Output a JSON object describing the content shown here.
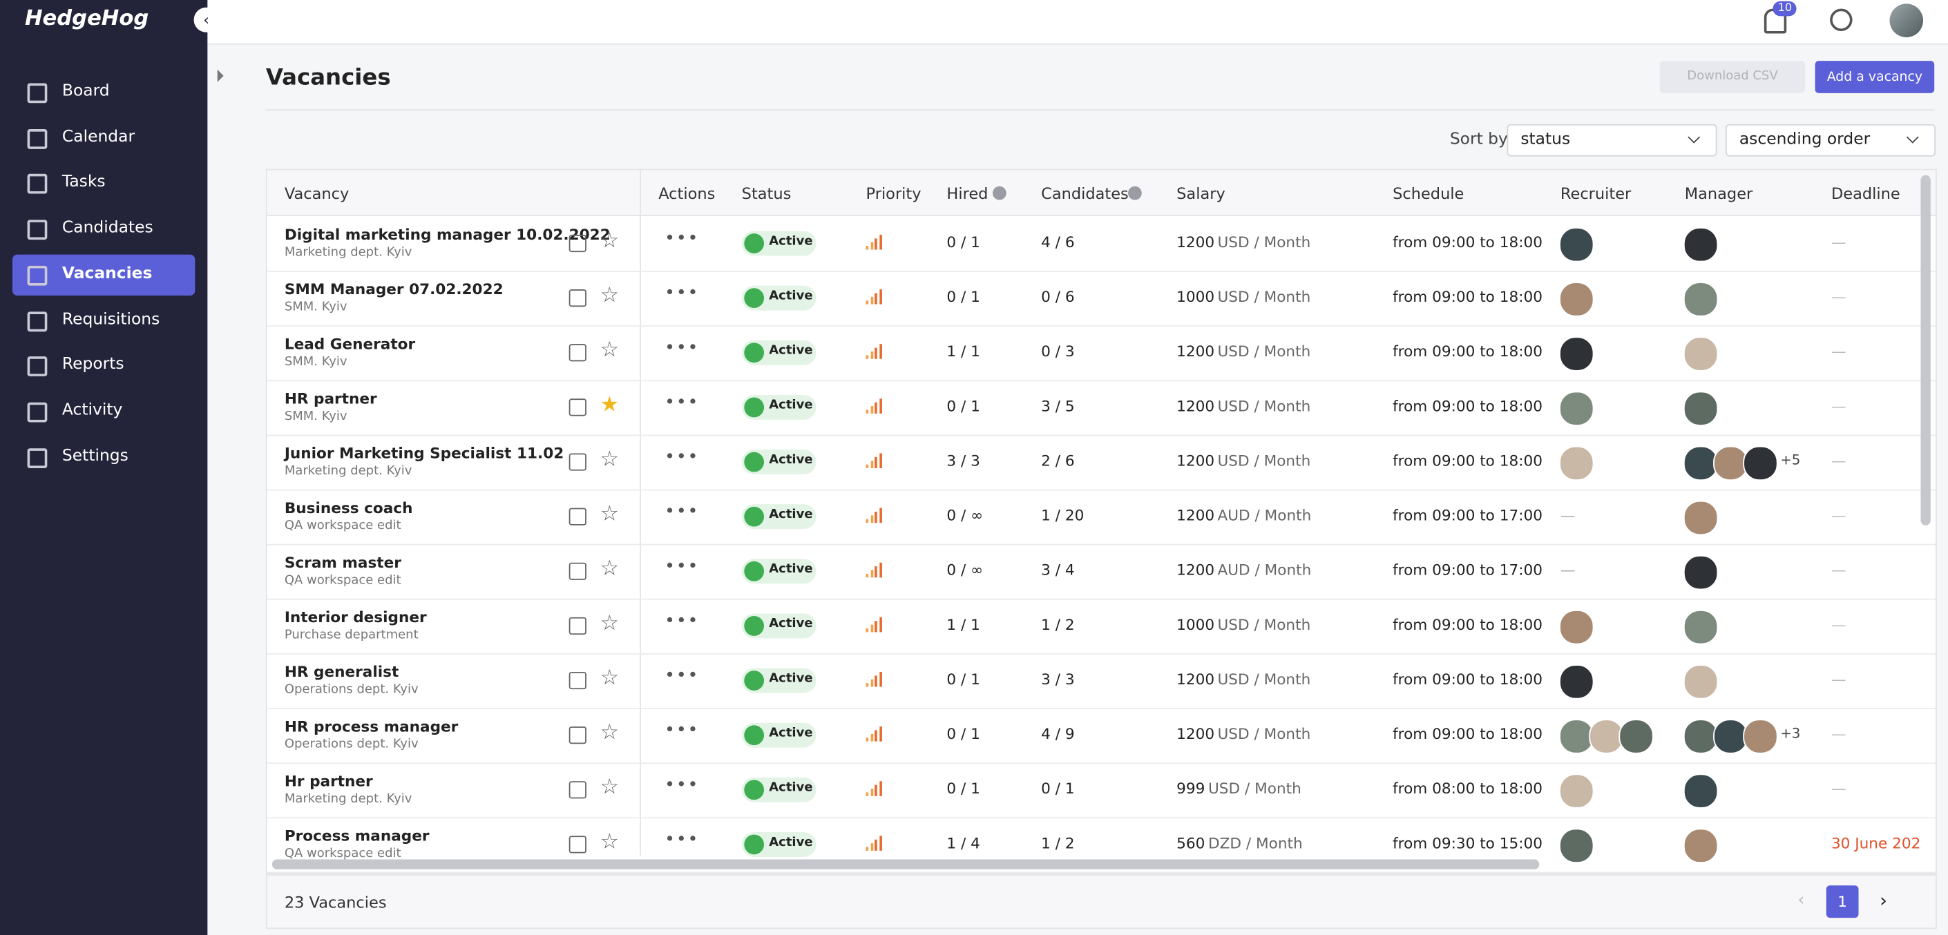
{
  "header": {
    "logo": "HedgeHog",
    "notification_count": "10"
  },
  "sidebar": {
    "items": [
      {
        "label": "Board",
        "active": false
      },
      {
        "label": "Calendar",
        "active": false
      },
      {
        "label": "Tasks",
        "active": false
      },
      {
        "label": "Candidates",
        "active": false
      },
      {
        "label": "Vacancies",
        "active": true
      },
      {
        "label": "Requisitions",
        "active": false
      },
      {
        "label": "Reports",
        "active": false
      },
      {
        "label": "Activity",
        "active": false
      },
      {
        "label": "Settings",
        "active": false
      }
    ]
  },
  "page": {
    "title": "Vacancies",
    "download_button": "Download CSV",
    "add_button": "Add a vacancy",
    "sort_label": "Sort by",
    "sort_field": "status",
    "sort_order": "ascending order"
  },
  "table": {
    "columns": [
      "Vacancy",
      "Actions",
      "Status",
      "Priority",
      "Hired",
      "Candidates",
      "Salary",
      "Schedule",
      "Recruiter",
      "Manager",
      "Deadline"
    ],
    "rows": [
      {
        "title": "Digital marketing manager 10.02.2022",
        "department": "Marketing dept. Kyiv",
        "starred": false,
        "status": "Active",
        "hired": "0 / 1",
        "candidates": "4 / 6",
        "salary": "1200",
        "salary_unit": "USD / Month",
        "schedule": "from 09:00 to 18:00",
        "deadline": "—"
      },
      {
        "title": "SMM Manager 07.02.2022",
        "department": "SMM. Kyiv",
        "starred": false,
        "status": "Active",
        "hired": "0 / 1",
        "candidates": "0 / 6",
        "salary": "1000",
        "salary_unit": "USD / Month",
        "schedule": "from 09:00 to 18:00",
        "deadline": "—"
      },
      {
        "title": "Lead Generator",
        "department": "SMM. Kyiv",
        "starred": false,
        "status": "Active",
        "hired": "1 / 1",
        "candidates": "0 / 3",
        "salary": "1200",
        "salary_unit": "USD / Month",
        "schedule": "from 09:00 to 18:00",
        "deadline": "—"
      },
      {
        "title": "HR partner",
        "department": "SMM. Kyiv",
        "starred": true,
        "status": "Active",
        "hired": "0 / 1",
        "candidates": "3 / 5",
        "salary": "1200",
        "salary_unit": "USD / Month",
        "schedule": "from 09:00 to 18:00",
        "deadline": "—"
      },
      {
        "title": "Junior Marketing Specialist 11.02",
        "department": "Marketing dept. Kyiv",
        "starred": false,
        "status": "Active",
        "hired": "3 / 3",
        "candidates": "2 / 6",
        "salary": "1200",
        "salary_unit": "USD / Month",
        "schedule": "from 09:00 to 18:00",
        "manager_extra": "+5",
        "deadline": "—"
      },
      {
        "title": "Business coach",
        "department": "QA workspace edit",
        "starred": false,
        "status": "Active",
        "hired": "0 / ∞",
        "candidates": "1 / 20",
        "salary": "1200",
        "salary_unit": "AUD / Month",
        "schedule": "from 09:00 to 17:00",
        "recruiter": "—",
        "deadline": "—"
      },
      {
        "title": "Scram master",
        "department": "QA workspace edit",
        "starred": false,
        "status": "Active",
        "hired": "0 / ∞",
        "candidates": "3 / 4",
        "salary": "1200",
        "salary_unit": "AUD / Month",
        "schedule": "from 09:00 to 17:00",
        "recruiter": "—",
        "deadline": "—"
      },
      {
        "title": "Interior designer",
        "department": "Purchase department",
        "starred": false,
        "status": "Active",
        "hired": "1 / 1",
        "candidates": "1 / 2",
        "salary": "1000",
        "salary_unit": "USD / Month",
        "schedule": "from 09:00 to 18:00",
        "deadline": "—"
      },
      {
        "title": "HR generalist",
        "department": "Operations dept. Kyiv",
        "starred": false,
        "status": "Active",
        "hired": "0 / 1",
        "candidates": "3 / 3",
        "salary": "1200",
        "salary_unit": "USD / Month",
        "schedule": "from 09:00 to 18:00",
        "deadline": "—"
      },
      {
        "title": "HR process manager",
        "department": "Operations dept. Kyiv",
        "starred": false,
        "status": "Active",
        "hired": "0 / 1",
        "candidates": "4 / 9",
        "salary": "1200",
        "salary_unit": "USD / Month",
        "schedule": "from 09:00 to 18:00",
        "manager_extra": "+3",
        "deadline": "—"
      },
      {
        "title": "Hr partner",
        "department": "Marketing dept. Kyiv",
        "starred": false,
        "status": "Active",
        "hired": "0 / 1",
        "candidates": "0 / 1",
        "salary": "999",
        "salary_unit": "USD / Month",
        "schedule": "from 08:00 to 18:00",
        "deadline": "—"
      },
      {
        "title": "Process manager",
        "department": "QA workspace edit",
        "starred": false,
        "status": "Active",
        "hired": "1 / 4",
        "candidates": "1 / 2",
        "salary": "560",
        "salary_unit": "DZD / Month",
        "schedule": "from 09:30 to 15:00",
        "deadline": "30 June 202"
      }
    ]
  },
  "footer": {
    "total": "23 Vacancies",
    "current_page": "1"
  }
}
